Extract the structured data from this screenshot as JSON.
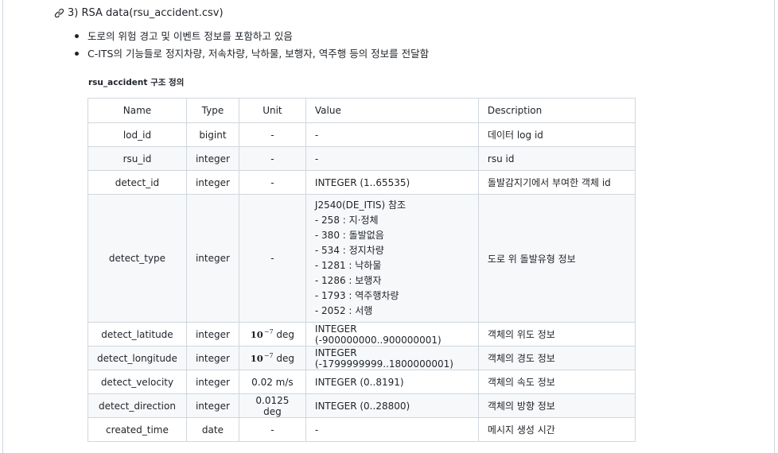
{
  "heading": {
    "text": "3) RSA data(rsu_accident.csv)"
  },
  "bullets": [
    "도로의 위험 경고 및 이벤트 정보를 포함하고 있음",
    "C-ITS의 기능들로 정지차량, 저속차량, 낙하물, 보행자, 역주행 등의 정보를 전달함"
  ],
  "subheading": "rsu_accident 구조 정의",
  "table": {
    "headers": [
      "Name",
      "Type",
      "Unit",
      "Value",
      "Description"
    ],
    "rows": [
      {
        "name": "lod_id",
        "type": "bigint",
        "unit": "-",
        "value": "-",
        "desc": "데이터 log id"
      },
      {
        "name": "rsu_id",
        "type": "integer",
        "unit": "-",
        "value": "-",
        "desc": "rsu id"
      },
      {
        "name": "detect_id",
        "type": "integer",
        "unit": "-",
        "value": "INTEGER (1..65535)",
        "desc": "돌발감지기에서 부여한 객체 id"
      },
      {
        "name": "detect_type",
        "type": "integer",
        "unit": "-",
        "value_lines": [
          "J2540(DE_ITIS) 참조",
          "- 258 : 지·정체",
          "- 380 : 돌발없음",
          "- 534 : 정지차량",
          "- 1281 : 낙하물",
          "- 1286 : 보행자",
          "- 1793 : 역주행차량",
          "- 2052 : 서행"
        ],
        "desc": "도로 위 돌발유형 정보"
      },
      {
        "name": "detect_latitude",
        "type": "integer",
        "unit_base": "10",
        "unit_exp": "−7",
        "unit_suffix": " deg",
        "value": "INTEGER (-900000000..900000001)",
        "desc": "객체의 위도 정보"
      },
      {
        "name": "detect_longitude",
        "type": "integer",
        "unit_base": "10",
        "unit_exp": "−7",
        "unit_suffix": " deg",
        "value": "INTEGER (-1799999999..1800000001)",
        "desc": "객체의 경도 정보"
      },
      {
        "name": "detect_velocity",
        "type": "integer",
        "unit": "0.02 m/s",
        "value": "INTEGER (0..8191)",
        "desc": "객체의 속도 정보"
      },
      {
        "name": "detect_direction",
        "type": "integer",
        "unit": "0.0125 deg",
        "value": "INTEGER (0..28800)",
        "desc": "객체의 방향 정보"
      },
      {
        "name": "created_time",
        "type": "date",
        "unit": "-",
        "value": "-",
        "desc": "메시지 생성 시간"
      }
    ]
  }
}
